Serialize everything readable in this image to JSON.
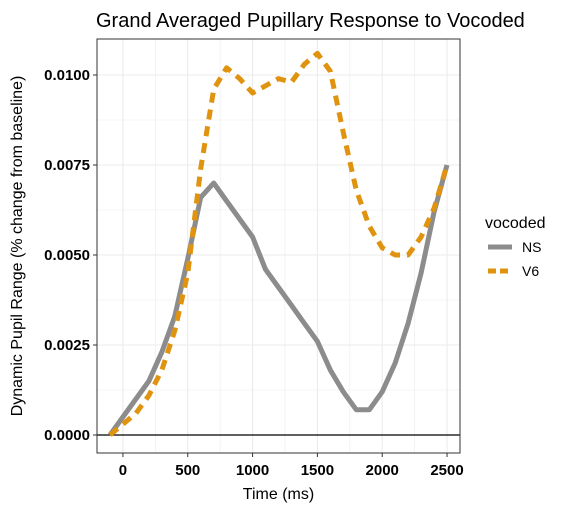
{
  "chart_data": {
    "type": "line",
    "title": "Grand Averaged Pupillary Response to Vocoded",
    "xlabel": "Time (ms)",
    "ylabel": "Dynamic Pupil Range (% change from baseline)",
    "xlim": [
      -200,
      2600
    ],
    "ylim": [
      -0.0005,
      0.011
    ],
    "xticks": [
      0,
      500,
      1000,
      1500,
      2000,
      2500
    ],
    "xtick_labels": [
      "0",
      "500",
      "1000",
      "1500",
      "2000",
      "2500"
    ],
    "yticks": [
      0,
      0.0025,
      0.005,
      0.0075,
      0.01
    ],
    "ytick_labels": [
      "0.0000",
      "0.0025",
      "0.0050",
      "0.0075",
      "0.0100"
    ],
    "grid": true,
    "hline": 0,
    "legend": {
      "title": "vocoded",
      "position": "right"
    },
    "series": [
      {
        "name": "NS",
        "color": "#8c8c8c",
        "dash": "solid",
        "points": [
          [
            -100,
            0.0
          ],
          [
            0,
            0.0005
          ],
          [
            100,
            0.001
          ],
          [
            200,
            0.0015
          ],
          [
            300,
            0.0023
          ],
          [
            400,
            0.0033
          ],
          [
            500,
            0.0049
          ],
          [
            600,
            0.0066
          ],
          [
            700,
            0.007
          ],
          [
            800,
            0.0065
          ],
          [
            900,
            0.006
          ],
          [
            1000,
            0.0055
          ],
          [
            1100,
            0.0046
          ],
          [
            1200,
            0.0041
          ],
          [
            1300,
            0.0036
          ],
          [
            1400,
            0.0031
          ],
          [
            1500,
            0.0026
          ],
          [
            1600,
            0.0018
          ],
          [
            1700,
            0.0012
          ],
          [
            1800,
            0.0007
          ],
          [
            1900,
            0.0007
          ],
          [
            2000,
            0.0012
          ],
          [
            2100,
            0.002
          ],
          [
            2200,
            0.0031
          ],
          [
            2300,
            0.0045
          ],
          [
            2400,
            0.0062
          ],
          [
            2500,
            0.0075
          ]
        ]
      },
      {
        "name": "V6",
        "color": "#e0930f",
        "dash": "dashed",
        "points": [
          [
            -100,
            0.0
          ],
          [
            0,
            0.0003
          ],
          [
            100,
            0.0006
          ],
          [
            200,
            0.0011
          ],
          [
            300,
            0.0018
          ],
          [
            400,
            0.0029
          ],
          [
            500,
            0.0045
          ],
          [
            600,
            0.0074
          ],
          [
            700,
            0.0096
          ],
          [
            800,
            0.0102
          ],
          [
            900,
            0.0099
          ],
          [
            1000,
            0.0095
          ],
          [
            1100,
            0.0097
          ],
          [
            1200,
            0.0099
          ],
          [
            1300,
            0.0098
          ],
          [
            1400,
            0.0103
          ],
          [
            1500,
            0.0106
          ],
          [
            1600,
            0.0101
          ],
          [
            1700,
            0.0084
          ],
          [
            1800,
            0.0068
          ],
          [
            1900,
            0.0058
          ],
          [
            2000,
            0.0052
          ],
          [
            2100,
            0.005
          ],
          [
            2200,
            0.005
          ],
          [
            2300,
            0.0055
          ],
          [
            2400,
            0.0063
          ],
          [
            2500,
            0.0075
          ]
        ]
      }
    ]
  }
}
